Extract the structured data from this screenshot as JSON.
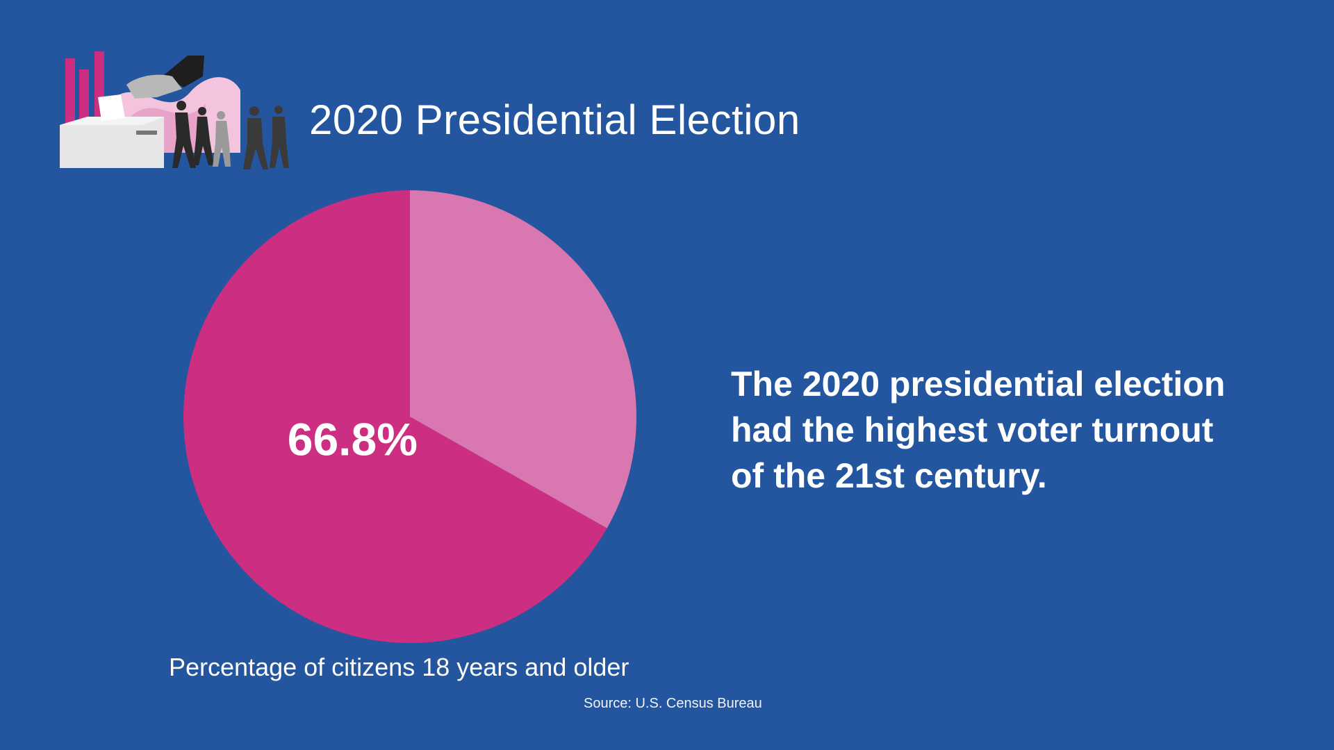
{
  "header": {
    "title": "2020 Presidential Election"
  },
  "statement": {
    "lines": [
      "The 2020 presidential election",
      "had the highest voter turnout",
      "of the 21st century."
    ]
  },
  "caption": "Percentage of citizens 18 years and older",
  "source": "Source: U.S. Census Bureau",
  "colors": {
    "background": "#23569e",
    "turnout_slice": "#cc2f82",
    "remainder_slice": "#d877b0",
    "text": "#ffffff"
  },
  "chart_data": {
    "type": "pie",
    "slices": [
      {
        "value": 66.8,
        "label": "66.8%",
        "color": "#cc2f82"
      },
      {
        "value": 33.2,
        "label": "",
        "color": "#d877b0"
      }
    ],
    "caption": "Percentage of citizens 18 years and older"
  }
}
